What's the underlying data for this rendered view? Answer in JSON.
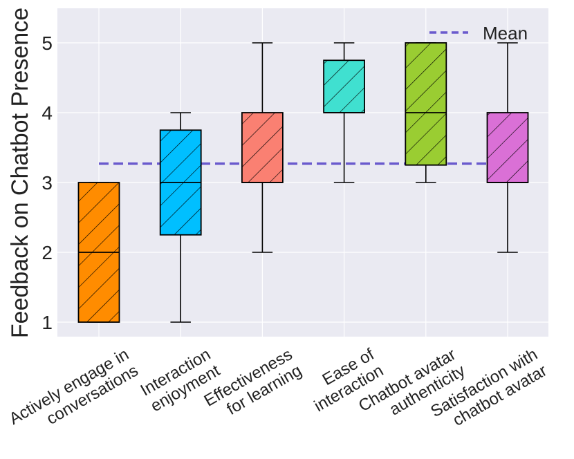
{
  "chart_data": {
    "type": "box",
    "ylabel": "Feedback on Chatbot Presence",
    "xlabel": "",
    "ylim": [
      0.8,
      5.5
    ],
    "yticks": [
      1,
      2,
      3,
      4,
      5
    ],
    "grid": true,
    "legend": {
      "label": "Mean",
      "position": "top-right",
      "style": "dashed"
    },
    "mean": 3.27,
    "mean_color": "#6a5acd",
    "categories": [
      {
        "label_lines": [
          "Actively engage in",
          "conversations"
        ],
        "whisker_low": 1,
        "q1": 1,
        "median": 2,
        "q3": 3,
        "whisker_high": 3,
        "color": "#ff8c00"
      },
      {
        "label_lines": [
          "Interaction",
          "enjoyment"
        ],
        "whisker_low": 1,
        "q1": 2.25,
        "median": 3,
        "q3": 3.75,
        "whisker_high": 4,
        "color": "#00bfff"
      },
      {
        "label_lines": [
          "Effectiveness",
          "for learning"
        ],
        "whisker_low": 2,
        "q1": 3,
        "median": 3,
        "q3": 4,
        "whisker_high": 5,
        "color": "#fa8072"
      },
      {
        "label_lines": [
          "Ease of",
          "interaction"
        ],
        "whisker_low": 3,
        "q1": 4,
        "median": 4,
        "q3": 4.75,
        "whisker_high": 5,
        "color": "#40e0d0"
      },
      {
        "label_lines": [
          "Chatbot avatar",
          "authenticity"
        ],
        "whisker_low": 3,
        "q1": 3.25,
        "median": 4,
        "q3": 5,
        "whisker_high": 5,
        "color": "#9acd32"
      },
      {
        "label_lines": [
          "Satisfaction with",
          "chatbot avatar"
        ],
        "whisker_low": 2,
        "q1": 3,
        "median": 3,
        "q3": 4,
        "whisker_high": 5,
        "color": "#da70d6"
      }
    ]
  }
}
